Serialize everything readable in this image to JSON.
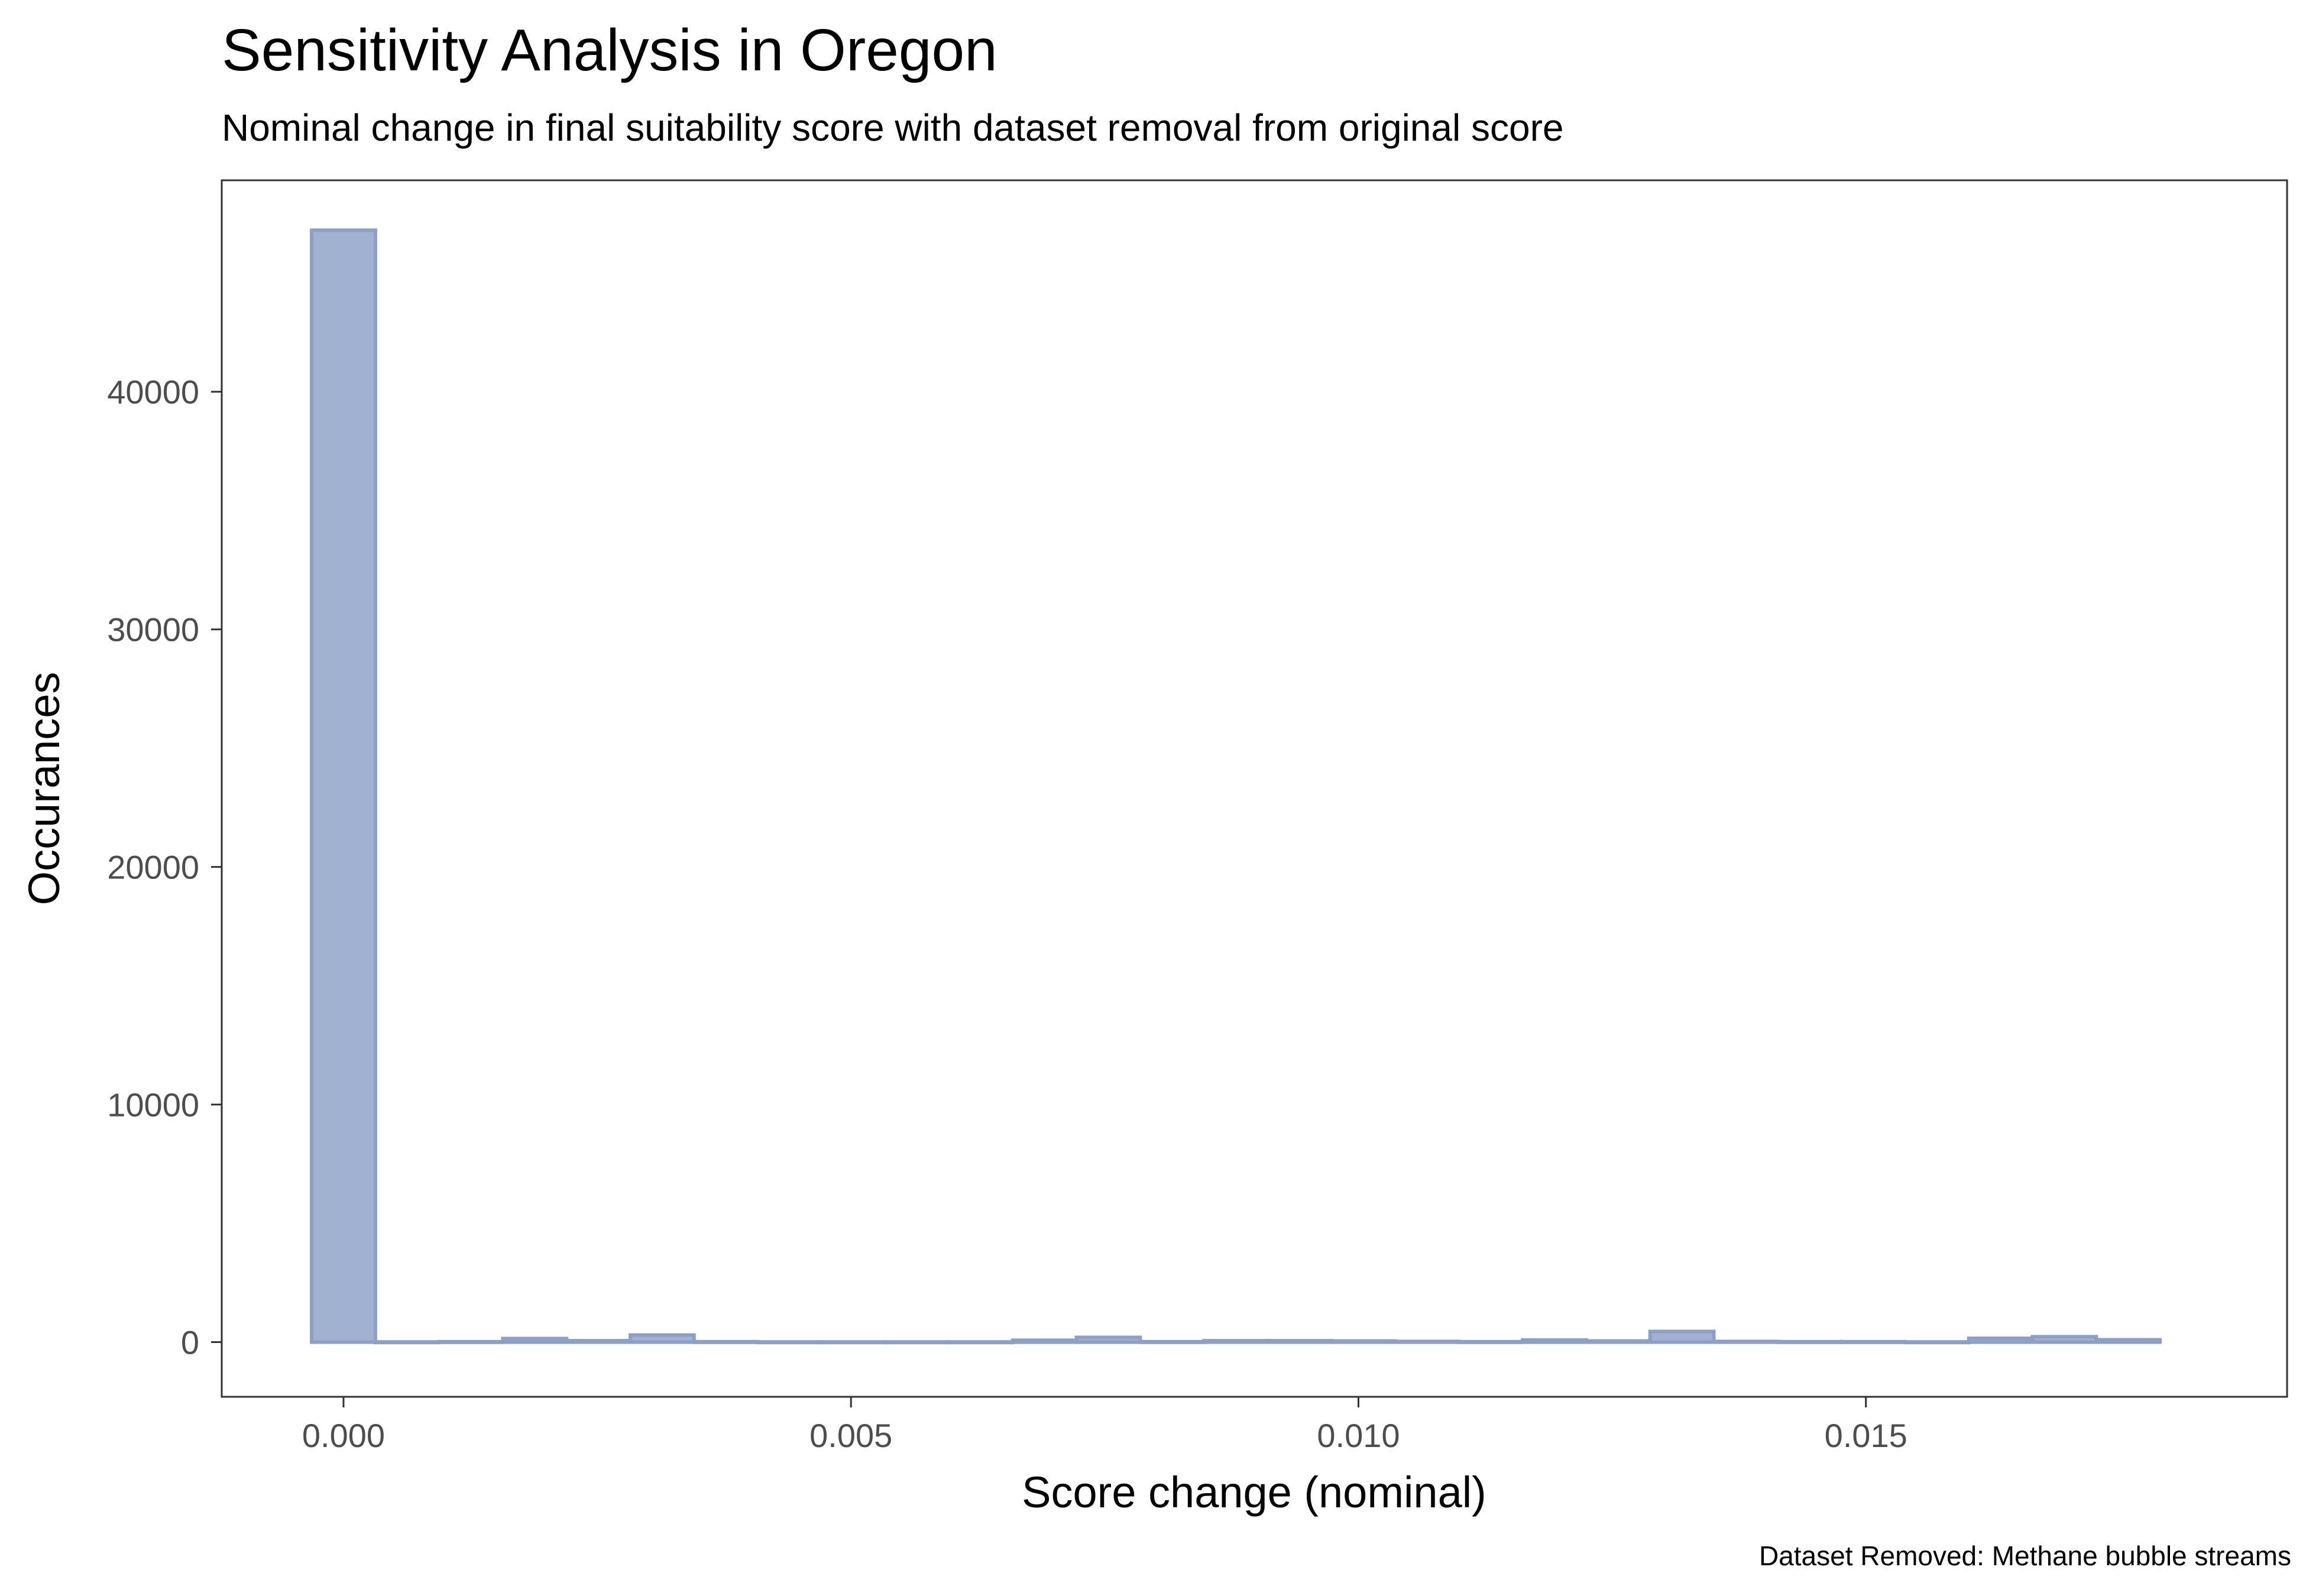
{
  "chart_data": {
    "type": "bar",
    "title": "Sensitivity Analysis in Oregon",
    "subtitle": "Nominal change in final suitability score with dataset removal from original score",
    "caption": "Dataset Removed: Methane bubble streams",
    "xlabel": "Score change (nominal)",
    "ylabel": "Occurances",
    "x_ticks": [
      0.0,
      0.005,
      0.01,
      0.015
    ],
    "x_tick_labels": [
      "0.000",
      "0.005",
      "0.010",
      "0.015"
    ],
    "y_ticks": [
      0,
      10000,
      20000,
      30000,
      40000
    ],
    "y_tick_labels": [
      "0",
      "10000",
      "20000",
      "30000",
      "40000"
    ],
    "xlim": [
      -0.0012,
      0.01915
    ],
    "ylim": [
      -2300,
      48900
    ],
    "bin_width": 0.000628,
    "bin_centers": [
      0.0,
      0.000628,
      0.001256,
      0.001884,
      0.002512,
      0.00314,
      0.003768,
      0.004396,
      0.005024,
      0.005652,
      0.00628,
      0.006908,
      0.007536,
      0.008164,
      0.008792,
      0.00942,
      0.010048,
      0.010676,
      0.011304,
      0.011932,
      0.01256,
      0.013188,
      0.013816,
      0.014444,
      0.015072,
      0.0157,
      0.016328,
      0.016956,
      0.017584
    ],
    "values": [
      46800,
      10,
      20,
      150,
      60,
      300,
      20,
      10,
      10,
      10,
      10,
      80,
      200,
      20,
      60,
      60,
      50,
      30,
      20,
      90,
      50,
      450,
      30,
      20,
      20,
      10,
      160,
      230,
      100
    ],
    "fill_color": "#A1B1D1",
    "stroke_color": "#8D9FC6",
    "grid": false,
    "legend": "none"
  }
}
